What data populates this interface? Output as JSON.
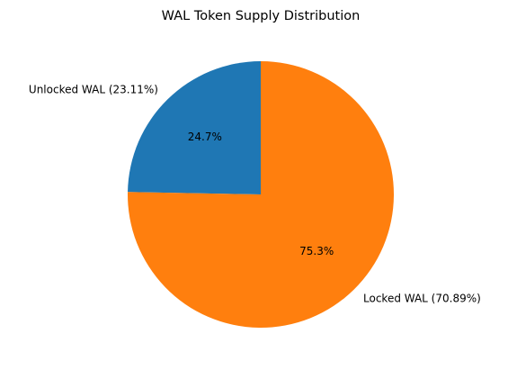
{
  "chart_data": {
    "type": "pie",
    "title": "WAL Token Supply Distribution",
    "categories": [
      "Unlocked WAL (23.11%)",
      "Locked WAL (70.89%)"
    ],
    "values": [
      24.7,
      75.3
    ],
    "value_labels": [
      "24.7%",
      "75.3%"
    ],
    "colors": [
      "#1f77b4",
      "#ff7f0e"
    ]
  }
}
